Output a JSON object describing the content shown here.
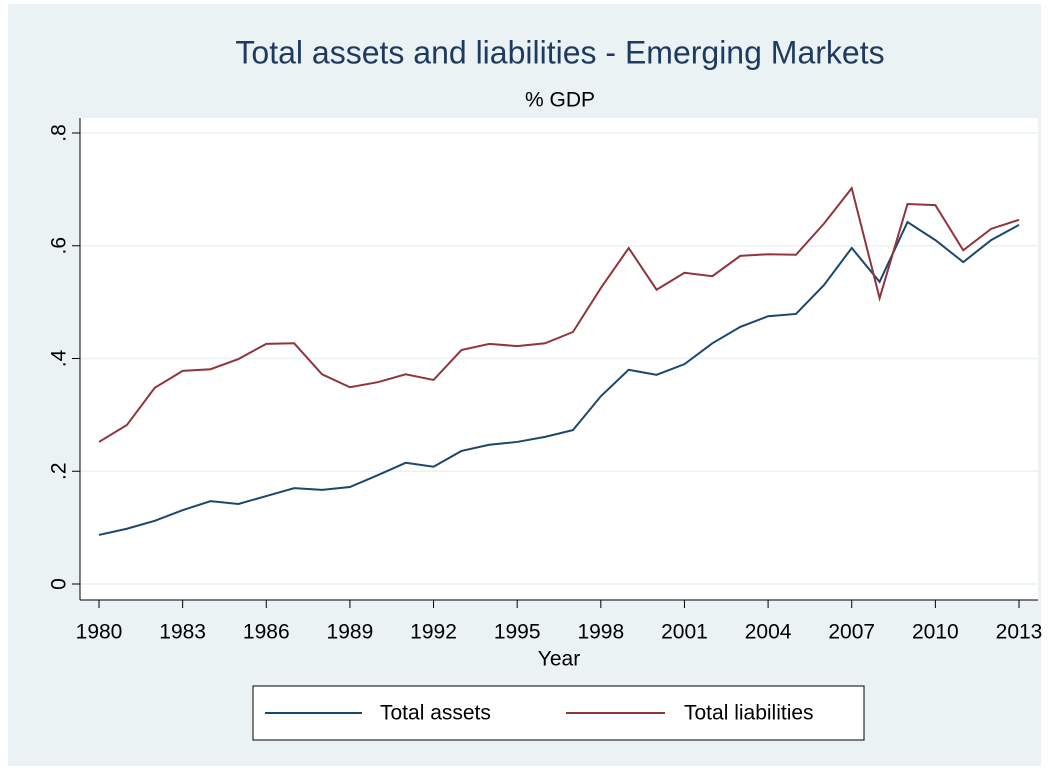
{
  "chart_data": {
    "type": "line",
    "title": "Total assets and liabilities - Emerging Markets",
    "subtitle": "% GDP",
    "x_label": "Year",
    "x": [
      1980,
      1981,
      1982,
      1983,
      1984,
      1985,
      1986,
      1987,
      1988,
      1989,
      1990,
      1991,
      1992,
      1993,
      1994,
      1995,
      1996,
      1997,
      1998,
      1999,
      2000,
      2001,
      2002,
      2003,
      2004,
      2005,
      2006,
      2007,
      2008,
      2009,
      2010,
      2011,
      2012,
      2013
    ],
    "series": [
      {
        "name": "Total assets",
        "color": "#1a476f",
        "values": [
          0.087,
          0.098,
          0.112,
          0.131,
          0.147,
          0.142,
          0.156,
          0.17,
          0.167,
          0.172,
          0.193,
          0.215,
          0.208,
          0.236,
          0.247,
          0.252,
          0.261,
          0.273,
          0.333,
          0.38,
          0.371,
          0.39,
          0.427,
          0.456,
          0.475,
          0.479,
          0.53,
          0.596,
          0.536,
          0.642,
          0.61,
          0.571,
          0.61,
          0.637
        ]
      },
      {
        "name": "Total liabilities",
        "color": "#90353b",
        "values": [
          0.252,
          0.282,
          0.348,
          0.378,
          0.381,
          0.399,
          0.426,
          0.427,
          0.372,
          0.349,
          0.358,
          0.372,
          0.362,
          0.415,
          0.426,
          0.422,
          0.427,
          0.447,
          0.525,
          0.596,
          0.522,
          0.552,
          0.546,
          0.582,
          0.585,
          0.584,
          0.639,
          0.702,
          0.507,
          0.674,
          0.672,
          0.592,
          0.63,
          0.646
        ]
      }
    ],
    "xlim": [
      1980,
      2013
    ],
    "xticks": [
      1980,
      1983,
      1986,
      1989,
      1992,
      1995,
      1998,
      2001,
      2004,
      2007,
      2010,
      2013
    ],
    "ylim": [
      0,
      0.8
    ],
    "yticks": [
      0,
      {
        "value": 0.2,
        "label": ".2"
      },
      {
        "value": 0.4,
        "label": ".4"
      },
      {
        "value": 0.6,
        "label": ".6"
      },
      {
        "value": 0.8,
        "label": ".8"
      }
    ],
    "grid": true,
    "legend": "bottom"
  }
}
